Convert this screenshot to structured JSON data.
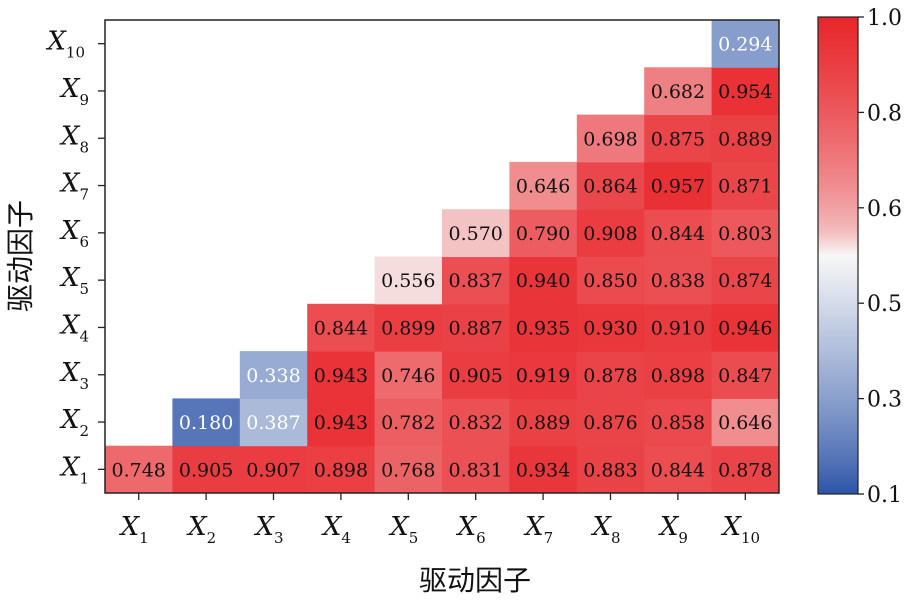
{
  "chart_data": {
    "type": "heatmap",
    "xlabel": "驱动因子",
    "ylabel": "驱动因子",
    "factors": [
      {
        "base": "X",
        "sub": "1"
      },
      {
        "base": "X",
        "sub": "2"
      },
      {
        "base": "X",
        "sub": "3"
      },
      {
        "base": "X",
        "sub": "4"
      },
      {
        "base": "X",
        "sub": "5"
      },
      {
        "base": "X",
        "sub": "6"
      },
      {
        "base": "X",
        "sub": "7"
      },
      {
        "base": "X",
        "sub": "8"
      },
      {
        "base": "X",
        "sub": "9"
      },
      {
        "base": "X",
        "sub": "10"
      }
    ],
    "cells": [
      {
        "row": 1,
        "col": 1,
        "value": "0.748"
      },
      {
        "row": 1,
        "col": 2,
        "value": "0.905"
      },
      {
        "row": 1,
        "col": 3,
        "value": "0.907"
      },
      {
        "row": 1,
        "col": 4,
        "value": "0.898"
      },
      {
        "row": 1,
        "col": 5,
        "value": "0.768"
      },
      {
        "row": 1,
        "col": 6,
        "value": "0.831"
      },
      {
        "row": 1,
        "col": 7,
        "value": "0.934"
      },
      {
        "row": 1,
        "col": 8,
        "value": "0.883"
      },
      {
        "row": 1,
        "col": 9,
        "value": "0.844"
      },
      {
        "row": 1,
        "col": 10,
        "value": "0.878"
      },
      {
        "row": 2,
        "col": 2,
        "value": "0.180"
      },
      {
        "row": 2,
        "col": 3,
        "value": "0.387"
      },
      {
        "row": 2,
        "col": 4,
        "value": "0.943"
      },
      {
        "row": 2,
        "col": 5,
        "value": "0.782"
      },
      {
        "row": 2,
        "col": 6,
        "value": "0.832"
      },
      {
        "row": 2,
        "col": 7,
        "value": "0.889"
      },
      {
        "row": 2,
        "col": 8,
        "value": "0.876"
      },
      {
        "row": 2,
        "col": 9,
        "value": "0.858"
      },
      {
        "row": 2,
        "col": 10,
        "value": "0.646"
      },
      {
        "row": 3,
        "col": 3,
        "value": "0.338"
      },
      {
        "row": 3,
        "col": 4,
        "value": "0.943"
      },
      {
        "row": 3,
        "col": 5,
        "value": "0.746"
      },
      {
        "row": 3,
        "col": 6,
        "value": "0.905"
      },
      {
        "row": 3,
        "col": 7,
        "value": "0.919"
      },
      {
        "row": 3,
        "col": 8,
        "value": "0.878"
      },
      {
        "row": 3,
        "col": 9,
        "value": "0.898"
      },
      {
        "row": 3,
        "col": 10,
        "value": "0.847"
      },
      {
        "row": 4,
        "col": 4,
        "value": "0.844"
      },
      {
        "row": 4,
        "col": 5,
        "value": "0.899"
      },
      {
        "row": 4,
        "col": 6,
        "value": "0.887"
      },
      {
        "row": 4,
        "col": 7,
        "value": "0.935"
      },
      {
        "row": 4,
        "col": 8,
        "value": "0.930"
      },
      {
        "row": 4,
        "col": 9,
        "value": "0.910"
      },
      {
        "row": 4,
        "col": 10,
        "value": "0.946"
      },
      {
        "row": 5,
        "col": 5,
        "value": "0.556"
      },
      {
        "row": 5,
        "col": 6,
        "value": "0.837"
      },
      {
        "row": 5,
        "col": 7,
        "value": "0.940"
      },
      {
        "row": 5,
        "col": 8,
        "value": "0.850"
      },
      {
        "row": 5,
        "col": 9,
        "value": "0.838"
      },
      {
        "row": 5,
        "col": 10,
        "value": "0.874"
      },
      {
        "row": 6,
        "col": 6,
        "value": "0.570"
      },
      {
        "row": 6,
        "col": 7,
        "value": "0.790"
      },
      {
        "row": 6,
        "col": 8,
        "value": "0.908"
      },
      {
        "row": 6,
        "col": 9,
        "value": "0.844"
      },
      {
        "row": 6,
        "col": 10,
        "value": "0.803"
      },
      {
        "row": 7,
        "col": 7,
        "value": "0.646"
      },
      {
        "row": 7,
        "col": 8,
        "value": "0.864"
      },
      {
        "row": 7,
        "col": 9,
        "value": "0.957"
      },
      {
        "row": 7,
        "col": 10,
        "value": "0.871"
      },
      {
        "row": 8,
        "col": 8,
        "value": "0.698"
      },
      {
        "row": 8,
        "col": 9,
        "value": "0.875"
      },
      {
        "row": 8,
        "col": 10,
        "value": "0.889"
      },
      {
        "row": 9,
        "col": 9,
        "value": "0.682"
      },
      {
        "row": 9,
        "col": 10,
        "value": "0.954"
      },
      {
        "row": 10,
        "col": 10,
        "value": "0.294"
      }
    ],
    "colorbar": {
      "ticks": [
        "0.1",
        "0.3",
        "0.5",
        "0.6",
        "0.8",
        "1.0"
      ],
      "colors": {
        "low": "#2c54a8",
        "mid": "#f7f7f7",
        "high": "#e8262b"
      }
    }
  }
}
